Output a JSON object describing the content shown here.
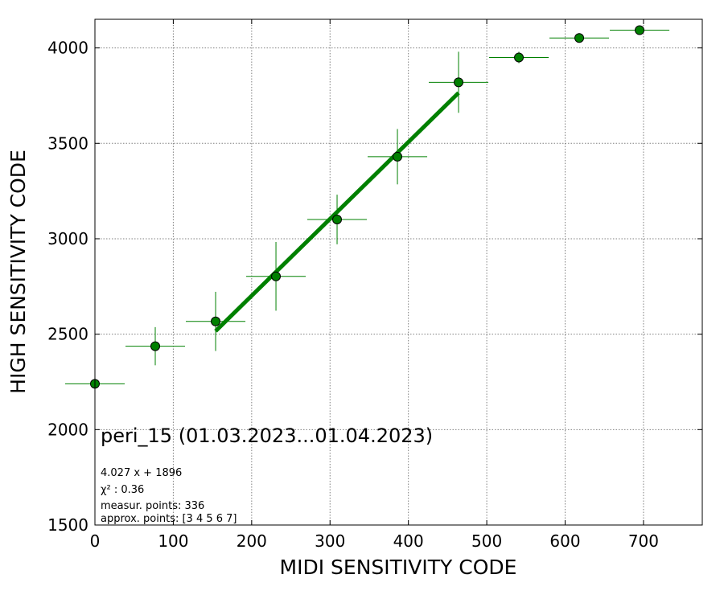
{
  "chart_data": {
    "type": "scatter",
    "title": "peri_15 (01.03.2023...01.04.2023)",
    "xlabel": "MIDI SENSITIVITY CODE",
    "ylabel": "HIGH SENSITIVITY CODE",
    "xlim": [
      0,
      775
    ],
    "ylim": [
      1500,
      4150
    ],
    "xticks": [
      0,
      100,
      200,
      300,
      400,
      500,
      600,
      700
    ],
    "yticks": [
      1500,
      2000,
      2500,
      3000,
      3500,
      4000
    ],
    "grid": true,
    "colors": {
      "points": "#008000",
      "fit": "#008000",
      "edge": "#000000"
    },
    "points": [
      {
        "x": 0,
        "y": 2240,
        "xerr": 38,
        "yerr": 0
      },
      {
        "x": 77,
        "y": 2437,
        "xerr": 38,
        "yerr": 100
      },
      {
        "x": 154,
        "y": 2567,
        "xerr": 38,
        "yerr": 155
      },
      {
        "x": 231,
        "y": 2803,
        "xerr": 38,
        "yerr": 180
      },
      {
        "x": 309,
        "y": 3101,
        "xerr": 38,
        "yerr": 130
      },
      {
        "x": 386,
        "y": 3430,
        "xerr": 38,
        "yerr": 145
      },
      {
        "x": 464,
        "y": 3820,
        "xerr": 38,
        "yerr": 160
      },
      {
        "x": 541,
        "y": 3950,
        "xerr": 38,
        "yerr": 30
      },
      {
        "x": 618,
        "y": 4052,
        "xerr": 38,
        "yerr": 25
      },
      {
        "x": 695,
        "y": 4093,
        "xerr": 38,
        "yerr": 10
      }
    ],
    "fit": {
      "slope": 4.027,
      "intercept": 1896,
      "x_range": [
        154,
        464
      ]
    },
    "annotations": {
      "equation": "4.027 x + 1896",
      "chi2": "χ² : 0.36",
      "measured": "measur. points: 336",
      "approx": "approx. points: [3 4 5 6 7]"
    }
  }
}
